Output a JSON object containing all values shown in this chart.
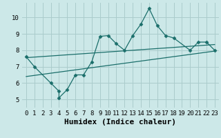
{
  "xlabel": "Humidex (Indice chaleur)",
  "background_color": "#cce8e8",
  "grid_color": "#aacccc",
  "line_color": "#1a6e6a",
  "xlim": [
    -0.5,
    23.5
  ],
  "ylim": [
    4.5,
    10.9
  ],
  "xticks": [
    0,
    1,
    2,
    3,
    4,
    5,
    6,
    7,
    8,
    9,
    10,
    11,
    12,
    13,
    14,
    15,
    16,
    17,
    18,
    19,
    20,
    21,
    22,
    23
  ],
  "yticks": [
    5,
    6,
    7,
    8,
    9,
    10
  ],
  "zigzag_x": [
    0,
    1,
    3,
    4,
    4,
    5,
    6,
    7,
    8,
    9,
    10,
    11,
    12,
    13,
    14,
    15,
    16,
    17,
    18,
    20,
    21,
    22,
    23
  ],
  "zigzag_y": [
    7.6,
    7.0,
    6.0,
    5.5,
    5.1,
    5.6,
    6.5,
    6.5,
    7.3,
    8.85,
    8.9,
    8.4,
    8.0,
    8.9,
    9.6,
    10.55,
    9.5,
    8.9,
    8.75,
    8.0,
    8.5,
    8.5,
    8.0
  ],
  "upper_line_x": [
    0,
    23
  ],
  "upper_line_y": [
    7.55,
    8.35
  ],
  "lower_line_x": [
    0,
    23
  ],
  "lower_line_y": [
    6.4,
    7.95
  ],
  "marker": "D",
  "markersize": 2.5,
  "linewidth": 0.9,
  "xlabel_fontsize": 8,
  "tick_fontsize": 6.5
}
